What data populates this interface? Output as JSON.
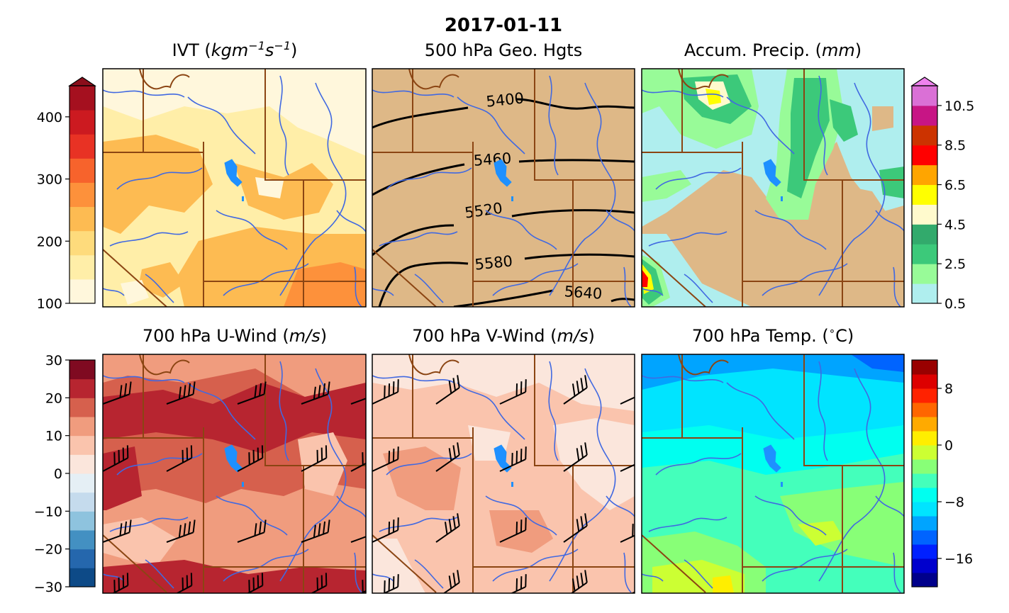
{
  "figure": {
    "date_title": "2017-01-11"
  },
  "panels": {
    "ivt": {
      "title_main": "IVT (",
      "title_unit": "kgm",
      "title_exp1": "−1",
      "title_s": "s",
      "title_exp2": "−1",
      "title_close": ")"
    },
    "geo": {
      "title": "500 hPa Geo. Hgts",
      "contour_labels": [
        "5400",
        "5460",
        "5520",
        "5580",
        "5640"
      ]
    },
    "precip": {
      "title_main": "Accum. Precip. (",
      "title_unit": "mm",
      "title_close": ")"
    },
    "uwind": {
      "title_main": "700 hPa U-Wind (",
      "title_unit": "m/s",
      "title_close": ")"
    },
    "vwind": {
      "title_main": "700 hPa V-Wind (",
      "title_unit": "m/s",
      "title_close": ")"
    },
    "temp": {
      "title_main": "700 hPa Temp. (",
      "title_deg": "∘",
      "title_unit": "C)"
    }
  },
  "colorbars": {
    "ivt": {
      "ticks": [
        "400",
        "300",
        "200",
        "100"
      ],
      "tick_values": [
        400,
        300,
        200,
        100
      ],
      "range": [
        100,
        450
      ],
      "extend": "max",
      "colors": [
        "#fff7dc",
        "#ffeea8",
        "#fedb7c",
        "#fdbb52",
        "#fd913b",
        "#f7632c",
        "#e83224",
        "#cc1a20",
        "#a5101f"
      ],
      "extend_color": "#8b0e1b"
    },
    "precip": {
      "ticks": [
        "10.5",
        "8.5",
        "6.5",
        "4.5",
        "2.5",
        "0.5"
      ],
      "tick_values": [
        10.5,
        8.5,
        6.5,
        4.5,
        2.5,
        0.5
      ],
      "range": [
        0.5,
        11.5
      ],
      "extend": "max",
      "colors": [
        "#afeeee",
        "#98fb98",
        "#3cc97a",
        "#32aa6c",
        "#fffacd",
        "#ffff00",
        "#ffa500",
        "#ff0000",
        "#cc3300",
        "#c71585",
        "#da70d6"
      ],
      "extend_color": "#ee82ee"
    },
    "uwind": {
      "ticks": [
        "30",
        "20",
        "10",
        "0",
        "−10",
        "−20",
        "−30"
      ],
      "tick_values": [
        30,
        20,
        10,
        0,
        -10,
        -20,
        -30
      ],
      "range": [
        -30,
        30
      ],
      "colors": [
        "#0d4a87",
        "#2567ad",
        "#4390c2",
        "#8ec3de",
        "#c5dbed",
        "#e5eff5",
        "#fbe6dc",
        "#fac4ad",
        "#f09c7e",
        "#d6604d",
        "#b72530",
        "#7f0a21"
      ]
    },
    "temp": {
      "ticks": [
        "8",
        "0",
        "−8",
        "−16"
      ],
      "tick_values": [
        8,
        0,
        -8,
        -16
      ],
      "range": [
        -20,
        12
      ],
      "colors": [
        "#00008b",
        "#0000cd",
        "#0020ff",
        "#0064ff",
        "#00a4ff",
        "#00e4ff",
        "#00fff0",
        "#44ffbb",
        "#88ff77",
        "#ccff33",
        "#ffee00",
        "#ffaa00",
        "#ff6600",
        "#ff2200",
        "#dd0000",
        "#990000"
      ]
    }
  },
  "colors": {
    "state_border": "#8b4513",
    "river": "#4169e1",
    "lake": "#1e90ff",
    "land_tan": "#deb887"
  }
}
